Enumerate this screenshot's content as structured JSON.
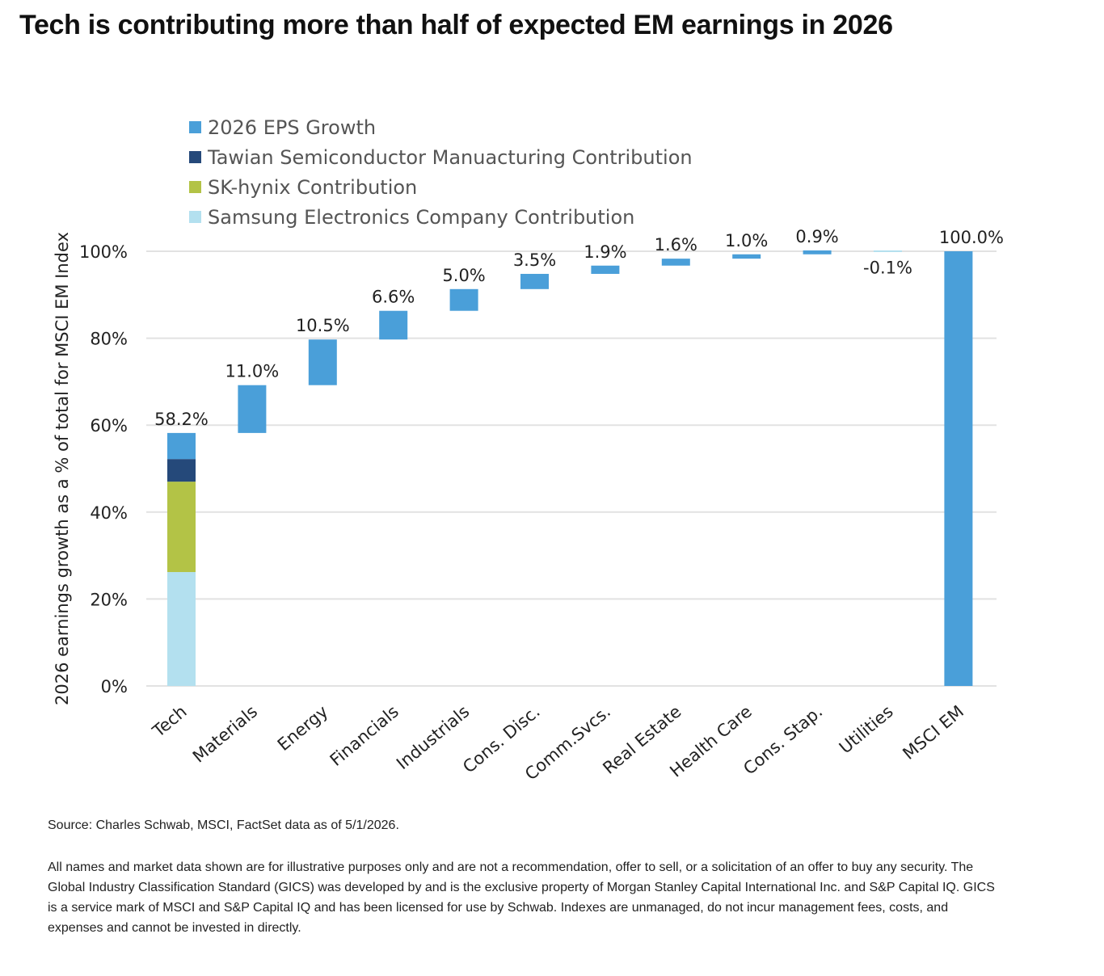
{
  "header": {
    "title": "Tech is contributing more than half of expected EM earnings in 2026"
  },
  "footer": {
    "source": "Source: Charles Schwab, MSCI, FactSet data as of 5/1/2026.",
    "disclaimer": "All names and market data shown are for illustrative purposes only and are not a recommendation, offer to sell, or a solicitation of an offer to buy any security. The Global Industry Classification Standard (GICS) was developed by and is the exclusive property of Morgan Stanley Capital International Inc. and S&P Capital IQ. GICS is a service mark of MSCI and S&P Capital IQ and has been licensed for use by Schwab. Indexes are unmanaged, do not incur management fees, costs, and expenses and cannot be invested in directly."
  },
  "chart_data": {
    "type": "bar",
    "subtype": "waterfall",
    "title": "",
    "xlabel": "",
    "ylabel": "2026 earnings growth as a % of total for MSCI EM Index",
    "ylim": [
      0,
      100
    ],
    "yticks": [
      0,
      20,
      40,
      60,
      80,
      100
    ],
    "ytick_labels": [
      "0%",
      "20%",
      "40%",
      "60%",
      "80%",
      "100%"
    ],
    "grid": true,
    "legend": [
      {
        "name": "2026 EPS Growth",
        "color": "#4a9fd9"
      },
      {
        "name": "Tawian Semiconductor Manuacturing Contribution",
        "color": "#25497a"
      },
      {
        "name": "SK-hynix Contribution",
        "color": "#b3c346"
      },
      {
        "name": "Samsung Electronics Company Contribution",
        "color": "#b3e0ef"
      }
    ],
    "legend_position": "top-left",
    "categories": [
      "Tech",
      "Materials",
      "Energy",
      "Financials",
      "Industrials",
      "Cons. Disc.",
      "Comm.Svcs.",
      "Real Estate",
      "Health Care",
      "Cons. Stap.",
      "Utilities",
      "MSCI EM"
    ],
    "values": [
      58.2,
      11.0,
      10.5,
      6.6,
      5.0,
      3.5,
      1.9,
      1.6,
      1.0,
      0.9,
      -0.1,
      100.0
    ],
    "data_labels": [
      "58.2%",
      "11.0%",
      "10.5%",
      "6.6%",
      "5.0%",
      "3.5%",
      "1.9%",
      "1.6%",
      "1.0%",
      "0.9%",
      "-0.1%",
      "100.0%"
    ],
    "tech_breakdown": {
      "samsung": 26.2,
      "sk_hynix": 20.8,
      "tsmc": 5.2,
      "other": 6.0
    },
    "colors": {
      "eps_growth": "#4a9fd9",
      "tsmc": "#25497a",
      "sk_hynix": "#b3c346",
      "samsung": "#b3e0ef",
      "grid": "#e2e2e2",
      "text": "#222222"
    }
  }
}
